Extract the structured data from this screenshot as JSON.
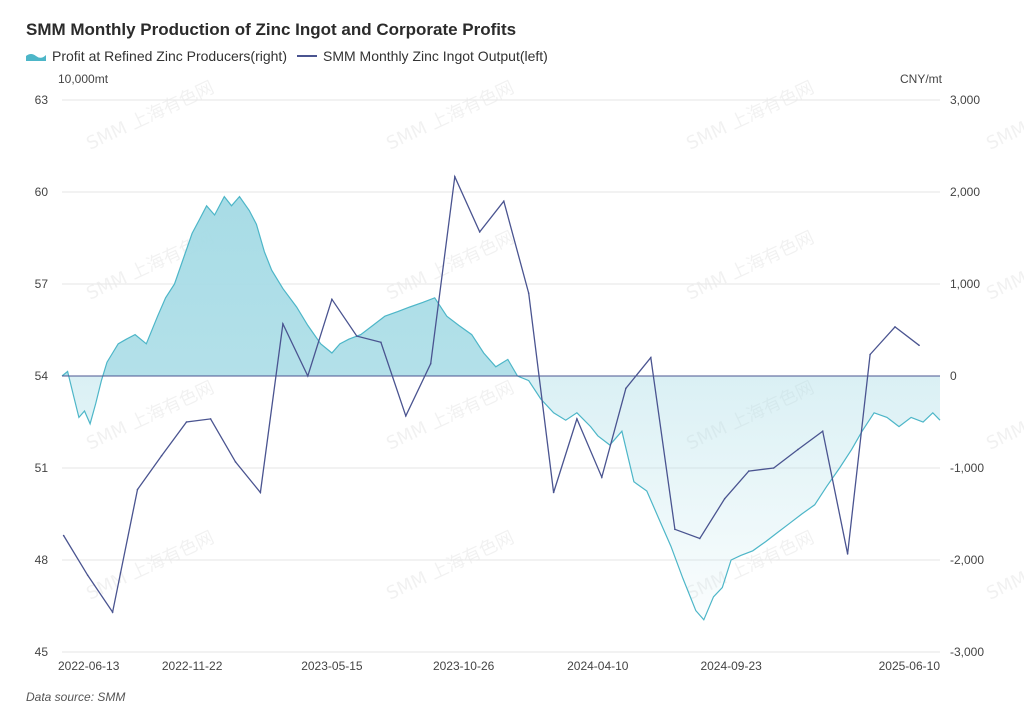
{
  "title": "SMM Monthly Production of Zinc Ingot and Corporate Profits",
  "legend": {
    "profit": "Profit at Refined Zinc Producers(right)",
    "output": "SMM Monthly Zinc Ingot Output(left)"
  },
  "units": {
    "left": "10,000mt",
    "right": "CNY/mt"
  },
  "source": "Data source:  SMM",
  "watermark": "SMM 上海有色网",
  "colors": {
    "profit_line": "#4db6c8",
    "profit_fill": "#a8dce6",
    "output_line": "#4a5490",
    "grid": "#e6e6e6"
  },
  "chart_data": {
    "type": "line",
    "x_ticks": [
      "2022-06-13",
      "2022-11-22",
      "2023-05-15",
      "2023-10-26",
      "2024-04-10",
      "2024-09-23",
      "2025-06-10"
    ],
    "left_axis": {
      "label": "10,000mt",
      "ylim": [
        45,
        63
      ],
      "ticks": [
        "63",
        "60",
        "57",
        "54",
        "51",
        "48",
        "45"
      ]
    },
    "right_axis": {
      "label": "CNY/mt",
      "ylim": [
        -3000,
        3000
      ],
      "ticks": [
        "3,000",
        "2,000",
        "1,000",
        "0",
        "-1,000",
        "-2,000",
        "-3,000"
      ]
    },
    "series": [
      {
        "name": "SMM Monthly Zinc Ingot Output(left)",
        "axis": "left",
        "type": "line",
        "points": [
          [
            "2022-06",
            48.8
          ],
          [
            "2022-07",
            47.5
          ],
          [
            "2022-08",
            46.3
          ],
          [
            "2022-09",
            50.3
          ],
          [
            "2022-10",
            51.4
          ],
          [
            "2022-11",
            52.5
          ],
          [
            "2022-12",
            52.6
          ],
          [
            "2023-01",
            51.2
          ],
          [
            "2023-02",
            50.2
          ],
          [
            "2023-03",
            55.7
          ],
          [
            "2023-04",
            54.0
          ],
          [
            "2023-05",
            56.5
          ],
          [
            "2023-06",
            55.3
          ],
          [
            "2023-07",
            55.1
          ],
          [
            "2023-08",
            52.7
          ],
          [
            "2023-09",
            54.4
          ],
          [
            "2023-10",
            60.5
          ],
          [
            "2023-11",
            58.7
          ],
          [
            "2023-12",
            59.7
          ],
          [
            "2024-01",
            56.7
          ],
          [
            "2024-02",
            50.2
          ],
          [
            "2024-03",
            52.6
          ],
          [
            "2024-04",
            50.7
          ],
          [
            "2024-05",
            53.6
          ],
          [
            "2024-06",
            54.6
          ],
          [
            "2024-07",
            49.0
          ],
          [
            "2024-08",
            48.7
          ],
          [
            "2024-09",
            50.0
          ],
          [
            "2024-10",
            50.9
          ],
          [
            "2024-11",
            51.0
          ],
          [
            "2024-12",
            51.6
          ],
          [
            "2025-01",
            52.2
          ],
          [
            "2025-02",
            48.2
          ],
          [
            "2025-03",
            54.7
          ],
          [
            "2025-04",
            55.6
          ],
          [
            "2025-05",
            55.0
          ]
        ]
      },
      {
        "name": "Profit at Refined Zinc Producers(right)",
        "axis": "right",
        "type": "area",
        "points": [
          [
            "2022-06-13",
            0
          ],
          [
            "2022-06-20",
            50
          ],
          [
            "2022-06-27",
            -200
          ],
          [
            "2022-07-04",
            -450
          ],
          [
            "2022-07-11",
            -380
          ],
          [
            "2022-07-18",
            -520
          ],
          [
            "2022-07-25",
            -300
          ],
          [
            "2022-08-01",
            -50
          ],
          [
            "2022-08-08",
            150
          ],
          [
            "2022-08-15",
            250
          ],
          [
            "2022-08-22",
            350
          ],
          [
            "2022-09-01",
            400
          ],
          [
            "2022-09-12",
            450
          ],
          [
            "2022-09-26",
            350
          ],
          [
            "2022-10-10",
            650
          ],
          [
            "2022-10-20",
            850
          ],
          [
            "2022-10-31",
            1000
          ],
          [
            "2022-11-10",
            1250
          ],
          [
            "2022-11-22",
            1550
          ],
          [
            "2022-12-01",
            1700
          ],
          [
            "2022-12-10",
            1850
          ],
          [
            "2022-12-20",
            1750
          ],
          [
            "2023-01-01",
            1950
          ],
          [
            "2023-01-10",
            1850
          ],
          [
            "2023-01-20",
            1950
          ],
          [
            "2023-02-01",
            1800
          ],
          [
            "2023-02-10",
            1650
          ],
          [
            "2023-02-20",
            1350
          ],
          [
            "2023-03-01",
            1150
          ],
          [
            "2023-03-15",
            950
          ],
          [
            "2023-04-01",
            750
          ],
          [
            "2023-04-15",
            550
          ],
          [
            "2023-05-01",
            350
          ],
          [
            "2023-05-15",
            250
          ],
          [
            "2023-05-25",
            350
          ],
          [
            "2023-06-05",
            400
          ],
          [
            "2023-06-20",
            450
          ],
          [
            "2023-07-05",
            550
          ],
          [
            "2023-07-20",
            650
          ],
          [
            "2023-08-05",
            700
          ],
          [
            "2023-08-20",
            750
          ],
          [
            "2023-09-05",
            800
          ],
          [
            "2023-09-20",
            850
          ],
          [
            "2023-10-05",
            650
          ],
          [
            "2023-10-20",
            550
          ],
          [
            "2023-11-05",
            450
          ],
          [
            "2023-11-20",
            250
          ],
          [
            "2023-12-05",
            100
          ],
          [
            "2023-12-20",
            180
          ],
          [
            "2024-01-01",
            0
          ],
          [
            "2024-01-15",
            -50
          ],
          [
            "2024-01-30",
            -250
          ],
          [
            "2024-02-15",
            -400
          ],
          [
            "2024-03-01",
            -480
          ],
          [
            "2024-03-15",
            -400
          ],
          [
            "2024-04-01",
            -550
          ],
          [
            "2024-04-10",
            -650
          ],
          [
            "2024-04-25",
            -750
          ],
          [
            "2024-05-10",
            -600
          ],
          [
            "2024-05-25",
            -1150
          ],
          [
            "2024-06-10",
            -1250
          ],
          [
            "2024-06-25",
            -1550
          ],
          [
            "2024-07-10",
            -1850
          ],
          [
            "2024-07-25",
            -2200
          ],
          [
            "2024-08-10",
            -2550
          ],
          [
            "2024-08-20",
            -2650
          ],
          [
            "2024-09-01",
            -2400
          ],
          [
            "2024-09-12",
            -2300
          ],
          [
            "2024-09-23",
            -2000
          ],
          [
            "2024-10-05",
            -1950
          ],
          [
            "2024-10-20",
            -1900
          ],
          [
            "2024-11-05",
            -1800
          ],
          [
            "2024-11-20",
            -1700
          ],
          [
            "2024-12-05",
            -1600
          ],
          [
            "2024-12-20",
            -1500
          ],
          [
            "2025-01-05",
            -1400
          ],
          [
            "2025-01-20",
            -1200
          ],
          [
            "2025-02-05",
            -1000
          ],
          [
            "2025-02-20",
            -800
          ],
          [
            "2025-03-05",
            -600
          ],
          [
            "2025-03-20",
            -400
          ],
          [
            "2025-04-05",
            -450
          ],
          [
            "2025-04-20",
            -550
          ],
          [
            "2025-05-05",
            -450
          ],
          [
            "2025-05-20",
            -500
          ],
          [
            "2025-06-01",
            -400
          ],
          [
            "2025-06-10",
            -480
          ]
        ]
      }
    ]
  }
}
